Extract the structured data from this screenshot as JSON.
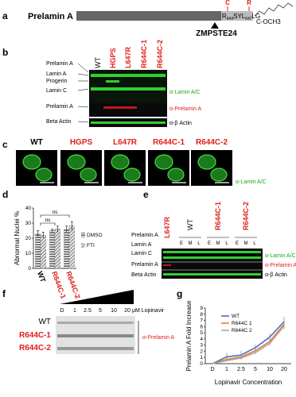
{
  "panels": {
    "a": {
      "letter": "a",
      "protein": "Prelamin A",
      "mutations": [
        "C",
        "R"
      ],
      "sequence": [
        "R",
        "644",
        "SY",
        "L",
        "647",
        "LG"
      ],
      "terminus": "C-OCH3",
      "enzyme": "ZMPSTE24"
    },
    "b": {
      "letter": "b",
      "lanes": [
        "WT",
        "HGPS",
        "L647R",
        "R644C-1",
        "R644C-2"
      ],
      "bands": [
        "Prelamin A",
        "Lamin A",
        "Progerin",
        "Lamin C",
        "Prelamin A",
        "Beta Actin"
      ],
      "antibodies": [
        "α-Lamin A/C",
        "α-Prelamin A",
        "α-β Actin"
      ]
    },
    "c": {
      "letter": "c",
      "lines": [
        "WT",
        "HGPS",
        "L647R",
        "R644C-1",
        "R644C-2"
      ],
      "stain": "α-Lamin A/C"
    },
    "d": {
      "letter": "d"
    },
    "e": {
      "letter": "e",
      "lanes": [
        "L647R",
        "WT",
        "R644C-1",
        "R644C-2"
      ],
      "fractions": [
        "E",
        "M",
        "L"
      ],
      "bands": [
        "Prelamin A",
        "Lamin A",
        "Lamin C",
        "Prelamin A",
        "Beta Actin"
      ],
      "antibodies": [
        "α-Lamin A/C",
        "α-Prelamin A",
        "α-β Actin"
      ]
    },
    "f": {
      "letter": "f",
      "doses": [
        "D",
        "1",
        "2.5",
        "5",
        "10",
        "20"
      ],
      "unit": "μM Lopinavir",
      "lines": [
        "WT",
        "R644C-1",
        "R644C-2"
      ],
      "antibody": "α-Prelamin A"
    },
    "g": {
      "letter": "g"
    }
  },
  "chart_data": [
    {
      "type": "bar",
      "y_label": "Abnormal Nuclei %",
      "categories": [
        "WT",
        "R644C-1",
        "R644C-2"
      ],
      "series": [
        {
          "name": "DMSO",
          "color": "#666666",
          "values": [
            23,
            25,
            26
          ],
          "errors": [
            2,
            1,
            2
          ]
        },
        {
          "name": "FTI",
          "color": "#999999",
          "values": [
            22,
            26,
            28
          ],
          "errors": [
            2,
            2,
            3
          ]
        }
      ],
      "ylim": [
        0,
        40
      ],
      "yticks": [
        0,
        10,
        20,
        30,
        40
      ],
      "annotations": [
        "ns",
        "ns"
      ]
    },
    {
      "type": "line",
      "y_label": "Prelamin A Fold Increase",
      "x_label": "Lopinavir Concentration",
      "categories": [
        "D",
        "1",
        "2.5",
        "5",
        "10",
        "20"
      ],
      "series": [
        {
          "name": "WT",
          "color": "#4472c4",
          "values": [
            0,
            1.1,
            1.4,
            2.6,
            4.3,
            6.8
          ],
          "errors": [
            0,
            0.6,
            0.7,
            0.5,
            0.6,
            0.8
          ]
        },
        {
          "name": "R644C 1",
          "color": "#ed7d31",
          "values": [
            0,
            0.7,
            1.1,
            2.1,
            3.6,
            6.4
          ],
          "errors": [
            0,
            0.3,
            0.4,
            0.4,
            0.5,
            0.7
          ]
        },
        {
          "name": "R644C 2",
          "color": "#a5a5a5",
          "values": [
            0,
            0.5,
            0.9,
            1.8,
            3.3,
            6.1
          ],
          "errors": [
            0,
            0.2,
            0.3,
            0.3,
            0.4,
            0.6
          ]
        }
      ],
      "ylim": [
        0,
        9
      ],
      "yticks": [
        0,
        1,
        2,
        3,
        4,
        5,
        6,
        7,
        8,
        9
      ],
      "legend": "upper left"
    }
  ]
}
